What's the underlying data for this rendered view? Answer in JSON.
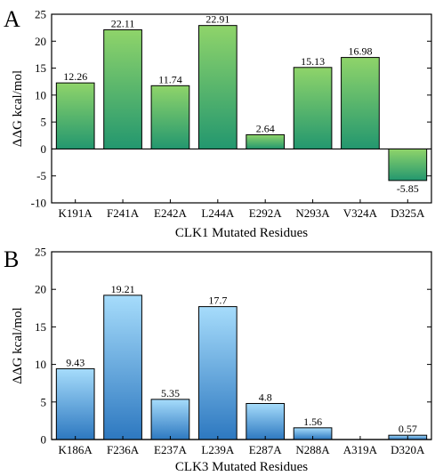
{
  "chart_data": [
    {
      "type": "bar",
      "panel_label": "A",
      "categories": [
        "K191A",
        "F241A",
        "E242A",
        "L244A",
        "E292A",
        "N293A",
        "V324A",
        "D325A"
      ],
      "values": [
        12.26,
        22.11,
        11.74,
        22.91,
        2.64,
        15.13,
        16.98,
        -5.85
      ],
      "data_labels": [
        "12.26",
        "22.11",
        "11.74",
        "22.91",
        "2.64",
        "15.13",
        "16.98",
        "-5.85"
      ],
      "xlabel": "CLK1 Mutated Residues",
      "ylabel": "ΔΔG kcal/mol",
      "ylim": [
        -10,
        25
      ],
      "yticks": [
        -10,
        -5,
        0,
        5,
        10,
        15,
        20,
        25
      ],
      "ytick_labels": [
        "-10",
        "-5",
        "0",
        "5",
        "10",
        "15",
        "20",
        "25"
      ],
      "grid": false,
      "colors": {
        "top": "#8fd46a",
        "bottom": "#23976f"
      }
    },
    {
      "type": "bar",
      "panel_label": "B",
      "categories": [
        "K186A",
        "F236A",
        "E237A",
        "L239A",
        "E287A",
        "N288A",
        "A319A",
        "D320A"
      ],
      "values": [
        9.43,
        19.21,
        5.35,
        17.7,
        4.8,
        1.56,
        0,
        0.57
      ],
      "data_labels": [
        "9.43",
        "19.21",
        "5.35",
        "17.7",
        "4.8",
        "1.56",
        "",
        "0.57"
      ],
      "xlabel": "CLK3 Mutated Residues",
      "ylabel": "ΔΔG kcal/mol",
      "ylim": [
        0,
        25
      ],
      "yticks": [
        0,
        5,
        10,
        15,
        20,
        25
      ],
      "ytick_labels": [
        "0",
        "5",
        "10",
        "15",
        "20",
        "25"
      ],
      "grid": false,
      "colors": {
        "top": "#a6dcfb",
        "bottom": "#2d78c0"
      }
    }
  ]
}
